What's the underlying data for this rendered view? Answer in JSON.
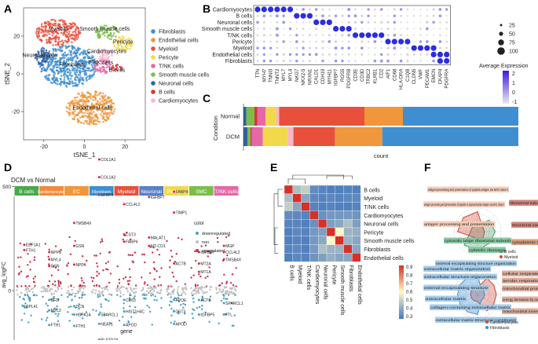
{
  "panel_letters": [
    "A",
    "B",
    "C",
    "D",
    "E",
    "F"
  ],
  "colors": {
    "Fibroblasts": "#3f8fd0",
    "Endothelial cells": "#f0963c",
    "Myeloid": "#e8503c",
    "Pericyte": "#f2d94c",
    "T/NK cells": "#e667a8",
    "Smooth muscle cells": "#7cbd4a",
    "Neuronal cells": "#2f62a8",
    "B cells": "#cf3a3a",
    "Cardiomyocytes": "#f7b6cc",
    "dot": "#2c2ce0",
    "dot_low": "#d4d4d8",
    "up": "#c8324a",
    "down": "#4a9fc0",
    "non": "#bfbfbf"
  },
  "chart_data": [
    {
      "id": "A",
      "type": "scatter",
      "title": "",
      "xlabel": "tSNE_1",
      "ylabel": "tSNE_2",
      "xticks": [
        "-20",
        "0",
        "20"
      ],
      "yticks": [
        "-20",
        "0",
        "20"
      ],
      "xlim": [
        -30,
        30
      ],
      "ylim": [
        -35,
        35
      ],
      "legend": [
        "Fibroblasts",
        "Endothelial cells",
        "Myeloid",
        "Pericyte",
        "T/NK cells",
        "Smooth muscle cells",
        "Neuronal cells",
        "B cells",
        "Cardiomyocytes"
      ],
      "cluster_labels": [
        "Myeloid",
        "Smooth muscle cells",
        "Pericyte",
        "Neuronal cells",
        "Cardiomyocytes",
        "T/NK cells",
        "B cells",
        "Fibroblasts",
        "Endothelial cells"
      ],
      "clusters": [
        {
          "name": "Fibroblasts",
          "cx": -8,
          "cy": 4,
          "rx": 14,
          "ry": 11
        },
        {
          "name": "Endothelial cells",
          "cx": 3,
          "cy": -18,
          "rx": 12,
          "ry": 9
        },
        {
          "name": "Myeloid",
          "cx": -13,
          "cy": 22,
          "rx": 11,
          "ry": 7
        },
        {
          "name": "Smooth muscle cells",
          "cx": 11,
          "cy": 22,
          "rx": 6,
          "ry": 4
        },
        {
          "name": "Pericyte",
          "cx": 19,
          "cy": 16,
          "rx": 5,
          "ry": 4
        },
        {
          "name": "Cardiomyocytes",
          "cx": 10,
          "cy": 10,
          "rx": 5,
          "ry": 3
        },
        {
          "name": "T/NK cells",
          "cx": 9,
          "cy": 4,
          "rx": 4,
          "ry": 4
        },
        {
          "name": "B cells",
          "cx": 16,
          "cy": 3,
          "rx": 3,
          "ry": 2
        },
        {
          "name": "Neuronal cells",
          "cx": -21,
          "cy": 9,
          "rx": 4,
          "ry": 5
        }
      ]
    },
    {
      "id": "B",
      "type": "dot",
      "rows": [
        "Cardiomyocytes",
        "B cells",
        "Neuronal cells",
        "Smooth muscle cells",
        "T/NK cells",
        "Pericyte",
        "Myeloid",
        "Endothelial cells",
        "Fibroblasts"
      ],
      "genes": [
        "TTN",
        "MYH7",
        "TNNI3",
        "TNNT2",
        "MYL7",
        "MYL4",
        "NKG7",
        "NKX2-5",
        "NRXN1",
        "CALD1",
        "CDH19",
        "MYH11",
        "IGFBP7",
        "RGS5",
        "PDGFRB",
        "CD3E",
        "CD3D",
        "TRBC2",
        "KLRB1",
        "CD2",
        "AIF1",
        "CD68",
        "HLA-DRA",
        "C1QB",
        "CLDN5",
        "VWF",
        "PECAM1",
        "EMCN",
        "CKAP4",
        "PDGFRA"
      ],
      "size_legend_title": "",
      "size_legend": [
        "25",
        "50",
        "75",
        "100"
      ],
      "color_legend_title": "Average Expression",
      "color_legend_ticks": [
        "2",
        "1",
        "0",
        "-1"
      ],
      "markers": [
        {
          "row": 0,
          "start": 0,
          "count": 6
        },
        {
          "row": 1,
          "start": 6,
          "count": 3
        },
        {
          "row": 2,
          "start": 9,
          "count": 3
        },
        {
          "row": 3,
          "start": 12,
          "count": 3
        },
        {
          "row": 4,
          "start": 15,
          "count": 5
        },
        {
          "row": 5,
          "start": 20,
          "count": 4
        },
        {
          "row": 6,
          "start": 24,
          "count": 4
        },
        {
          "row": 7,
          "start": 27,
          "count": 3
        },
        {
          "row": 8,
          "start": 28,
          "count": 2
        }
      ]
    },
    {
      "id": "C",
      "type": "stacked-bar",
      "xlabel": "count",
      "ylabel": "Condition",
      "categories": [
        "Normal",
        "DCM"
      ],
      "order": [
        "Neuronal cells",
        "Smooth muscle cells",
        "B cells",
        "T/NK cells",
        "Pericyte",
        "Cardiomyocytes",
        "Myeloid",
        "Endothelial cells",
        "Fibroblasts"
      ],
      "series": [
        {
          "name": "Neuronal cells",
          "values": [
            1,
            1.5
          ]
        },
        {
          "name": "Smooth muscle cells",
          "values": [
            3,
            1
          ]
        },
        {
          "name": "B cells",
          "values": [
            1,
            0.5
          ]
        },
        {
          "name": "T/NK cells",
          "values": [
            3,
            4
          ]
        },
        {
          "name": "Pericyte",
          "values": [
            4,
            9
          ]
        },
        {
          "name": "Cardiomyocytes",
          "values": [
            1,
            2
          ]
        },
        {
          "name": "Myeloid",
          "values": [
            31,
            15
          ]
        },
        {
          "name": "Endothelial cells",
          "values": [
            14,
            17
          ]
        },
        {
          "name": "Fibroblasts",
          "values": [
            42,
            49
          ]
        }
      ]
    },
    {
      "id": "D",
      "type": "strip",
      "title": "DCM vs Normal",
      "xlabel": "gene",
      "ylabel": "avg_logFC",
      "yticks": [
        "0",
        "500"
      ],
      "legend_title": "color",
      "legend": [
        "downregulated",
        "non",
        "upregulated"
      ],
      "groups": [
        "B cells",
        "Cardiomyocytes",
        "EC",
        "Fibroblasts",
        "Myeloid",
        "Neuronal",
        "Pericyte",
        "SMC",
        "T/NK cells"
      ],
      "group_colors": [
        "#4aa84a",
        "#f08a3c",
        "#f0963c",
        "#3f8fd0",
        "#e8503c",
        "#5a7ec8",
        "#f2d94c",
        "#7cbd4a",
        "#e667a8"
      ],
      "labels": [
        {
          "g": 0,
          "text": "EEF1A1",
          "v": 220
        },
        {
          "g": 0,
          "text": "FTH1",
          "v": 195
        },
        {
          "g": 0,
          "text": "RPL41",
          "v": -75
        },
        {
          "g": 1,
          "text": "NPPB",
          "v": 185
        },
        {
          "g": 1,
          "text": "MYL4",
          "v": 150
        },
        {
          "g": 1,
          "text": "GSN",
          "v": 118
        },
        {
          "g": 1,
          "text": "CFD",
          "v": -45
        },
        {
          "g": 1,
          "text": "MYL3",
          "v": -95
        },
        {
          "g": 1,
          "text": "FTH1",
          "v": -165
        },
        {
          "g": 2,
          "text": "TMSB4X",
          "v": 325
        },
        {
          "g": 2,
          "text": "GSN",
          "v": 215
        },
        {
          "g": 2,
          "text": "NPPA",
          "v": 125
        },
        {
          "g": 2,
          "text": "DCN",
          "v": -75
        },
        {
          "g": 2,
          "text": "HSPA1A",
          "v": -115
        },
        {
          "g": 2,
          "text": "FTH1",
          "v": -170
        },
        {
          "g": 3,
          "text": "COL1A1",
          "v": 630
        },
        {
          "g": 3,
          "text": "COL1A2",
          "v": 545
        },
        {
          "g": 3,
          "text": "SFRP4",
          "v": 460
        },
        {
          "g": 3,
          "text": "SPARCL1",
          "v": -115
        },
        {
          "g": 3,
          "text": "NEAT1",
          "v": -160
        },
        {
          "g": 3,
          "text": "PLA2G2A",
          "v": -235
        },
        {
          "g": 4,
          "text": "CCL4L2",
          "v": 415
        },
        {
          "g": 4,
          "text": "CST3",
          "v": 270
        },
        {
          "g": 4,
          "text": "FABP4",
          "v": 235
        },
        {
          "g": 4,
          "text": "CD63",
          "v": -45
        },
        {
          "g": 4,
          "text": "HIST1H4C",
          "v": -100
        },
        {
          "g": 4,
          "text": "APOD",
          "v": -165
        },
        {
          "g": 5,
          "text": "IGFBP7",
          "v": 450
        },
        {
          "g": 5,
          "text": "MALAT1",
          "v": 255
        },
        {
          "g": 5,
          "text": "MT-CO1",
          "v": 215
        },
        {
          "g": 6,
          "text": "FABP4",
          "v": 475
        },
        {
          "g": 6,
          "text": "TIMP1",
          "v": 375
        },
        {
          "g": 6,
          "text": "ACTB",
          "v": 130
        },
        {
          "g": 6,
          "text": "APOE",
          "v": -45
        },
        {
          "g": 6,
          "text": "CST3",
          "v": -100
        },
        {
          "g": 6,
          "text": "APOD",
          "v": -160
        },
        {
          "g": 7,
          "text": "IGFBP7",
          "v": 185
        },
        {
          "g": 7,
          "text": "MT2A",
          "v": 130
        },
        {
          "g": 7,
          "text": "MT1A",
          "v": 90
        },
        {
          "g": 7,
          "text": "ACTB",
          "v": -45
        },
        {
          "g": 7,
          "text": "IGFBP5",
          "v": -115
        },
        {
          "g": 8,
          "text": "MGP",
          "v": 215
        },
        {
          "g": 8,
          "text": "CCL4L2",
          "v": 185
        },
        {
          "g": 8,
          "text": "TMSB4X",
          "v": 150
        },
        {
          "g": 8,
          "text": "SPARCL1",
          "v": -60
        },
        {
          "g": 8,
          "text": "FTL",
          "v": -115
        },
        {
          "g": 8,
          "text": "APOD",
          "v": -260
        }
      ]
    },
    {
      "id": "E",
      "type": "heatmap",
      "rows": [
        "B cells",
        "Myeloid",
        "T/NK cells",
        "Cardiomyocytes",
        "Neuronal cells",
        "Pericyte",
        "Smooth muscle cells",
        "Fibroblasts",
        "Endothelial cells"
      ],
      "cols": [
        "B cells",
        "Myeloid",
        "T/NK cells",
        "Cardiomyocytes",
        "Neuronal cells",
        "Pericyte",
        "Smooth muscle cells",
        "Fibroblasts",
        "Endothelial cells"
      ],
      "scale_ticks": [
        "0.9",
        "0.8",
        "0.7",
        "0.6",
        "0.5",
        "0.4",
        "0.3"
      ],
      "vmin": 0.3,
      "vmax": 0.95,
      "values": [
        [
          0.95,
          0.48,
          0.52,
          0.35,
          0.33,
          0.32,
          0.32,
          0.33,
          0.32
        ],
        [
          0.48,
          0.95,
          0.42,
          0.34,
          0.33,
          0.34,
          0.33,
          0.34,
          0.34
        ],
        [
          0.52,
          0.42,
          0.95,
          0.33,
          0.32,
          0.33,
          0.32,
          0.32,
          0.33
        ],
        [
          0.35,
          0.34,
          0.33,
          0.95,
          0.36,
          0.38,
          0.38,
          0.38,
          0.37
        ],
        [
          0.33,
          0.33,
          0.32,
          0.36,
          0.95,
          0.4,
          0.42,
          0.48,
          0.4
        ],
        [
          0.32,
          0.34,
          0.33,
          0.38,
          0.4,
          0.95,
          0.62,
          0.45,
          0.44
        ],
        [
          0.32,
          0.33,
          0.32,
          0.38,
          0.42,
          0.62,
          0.95,
          0.45,
          0.42
        ],
        [
          0.33,
          0.34,
          0.32,
          0.38,
          0.48,
          0.45,
          0.45,
          0.95,
          0.42
        ],
        [
          0.32,
          0.34,
          0.33,
          0.37,
          0.4,
          0.44,
          0.42,
          0.42,
          0.95
        ]
      ]
    },
    {
      "id": "F",
      "type": "radar",
      "charts": [
        {
          "terms": [
            "antigen processing and presentation of peptide antigen via MHC class II",
            "ribosomal subunit",
            "structural constituent of ribosome",
            "cytoplasmic translation",
            "cytosolic ribosome",
            "cytosolic large ribosomal subunit",
            "antigen processing and presentation",
            "antigen processing and presentation of peptide or polysaccharide antigen via MHC class II"
          ],
          "term_colors": [
            "#f4c9b4",
            "#c87a70",
            "#c87a70",
            "#d09470",
            "#7cc29a",
            "#7cc29a",
            "#f4c9b4",
            "#f4c9b4"
          ],
          "series": [
            {
              "name": "B cells",
              "color": "#4a9a6a",
              "values": [
                0.3,
                0.7,
                0.75,
                0.7,
                0.8,
                0.8,
                0.3,
                0.3
              ]
            },
            {
              "name": "Myeloid",
              "color": "#d04a3a",
              "values": [
                0.85,
                0.3,
                0.3,
                0.35,
                0.3,
                0.3,
                0.85,
                0.85
              ]
            }
          ]
        },
        {
          "terms": [
            "external encapsulating structure organization",
            "cellular respiration",
            "aerobic respiration",
            "mitochondrial protein-containing complex",
            "energy derivation by oxidation of organic compounds",
            "mitochondrial inner membrane",
            "extracellular matrix structural constituent",
            "collagen-containing extracellular matrix",
            "extracellular matrix",
            "external encapsulating structure",
            "extracellular structure organization",
            "extracellular matrix organization"
          ],
          "term_colors": [
            "#9cc8e8",
            "#d9a694",
            "#d9a694",
            "#d9a694",
            "#d9a694",
            "#d9a694",
            "#9cc8e8",
            "#9cc8e8",
            "#9cc8e8",
            "#9cc8e8",
            "#9cc8e8",
            "#9cc8e8"
          ],
          "series": [
            {
              "name": "Cardiomyocytes",
              "color": "#d04a3a",
              "values": [
                0.3,
                0.8,
                0.8,
                0.8,
                0.8,
                0.8,
                0.3,
                0.3,
                0.3,
                0.3,
                0.3,
                0.3
              ]
            },
            {
              "name": "Fibroblasts",
              "color": "#3f8fd0",
              "values": [
                0.85,
                0.3,
                0.3,
                0.3,
                0.3,
                0.3,
                0.85,
                0.85,
                0.85,
                0.85,
                0.85,
                0.85
              ]
            }
          ]
        }
      ]
    }
  ]
}
